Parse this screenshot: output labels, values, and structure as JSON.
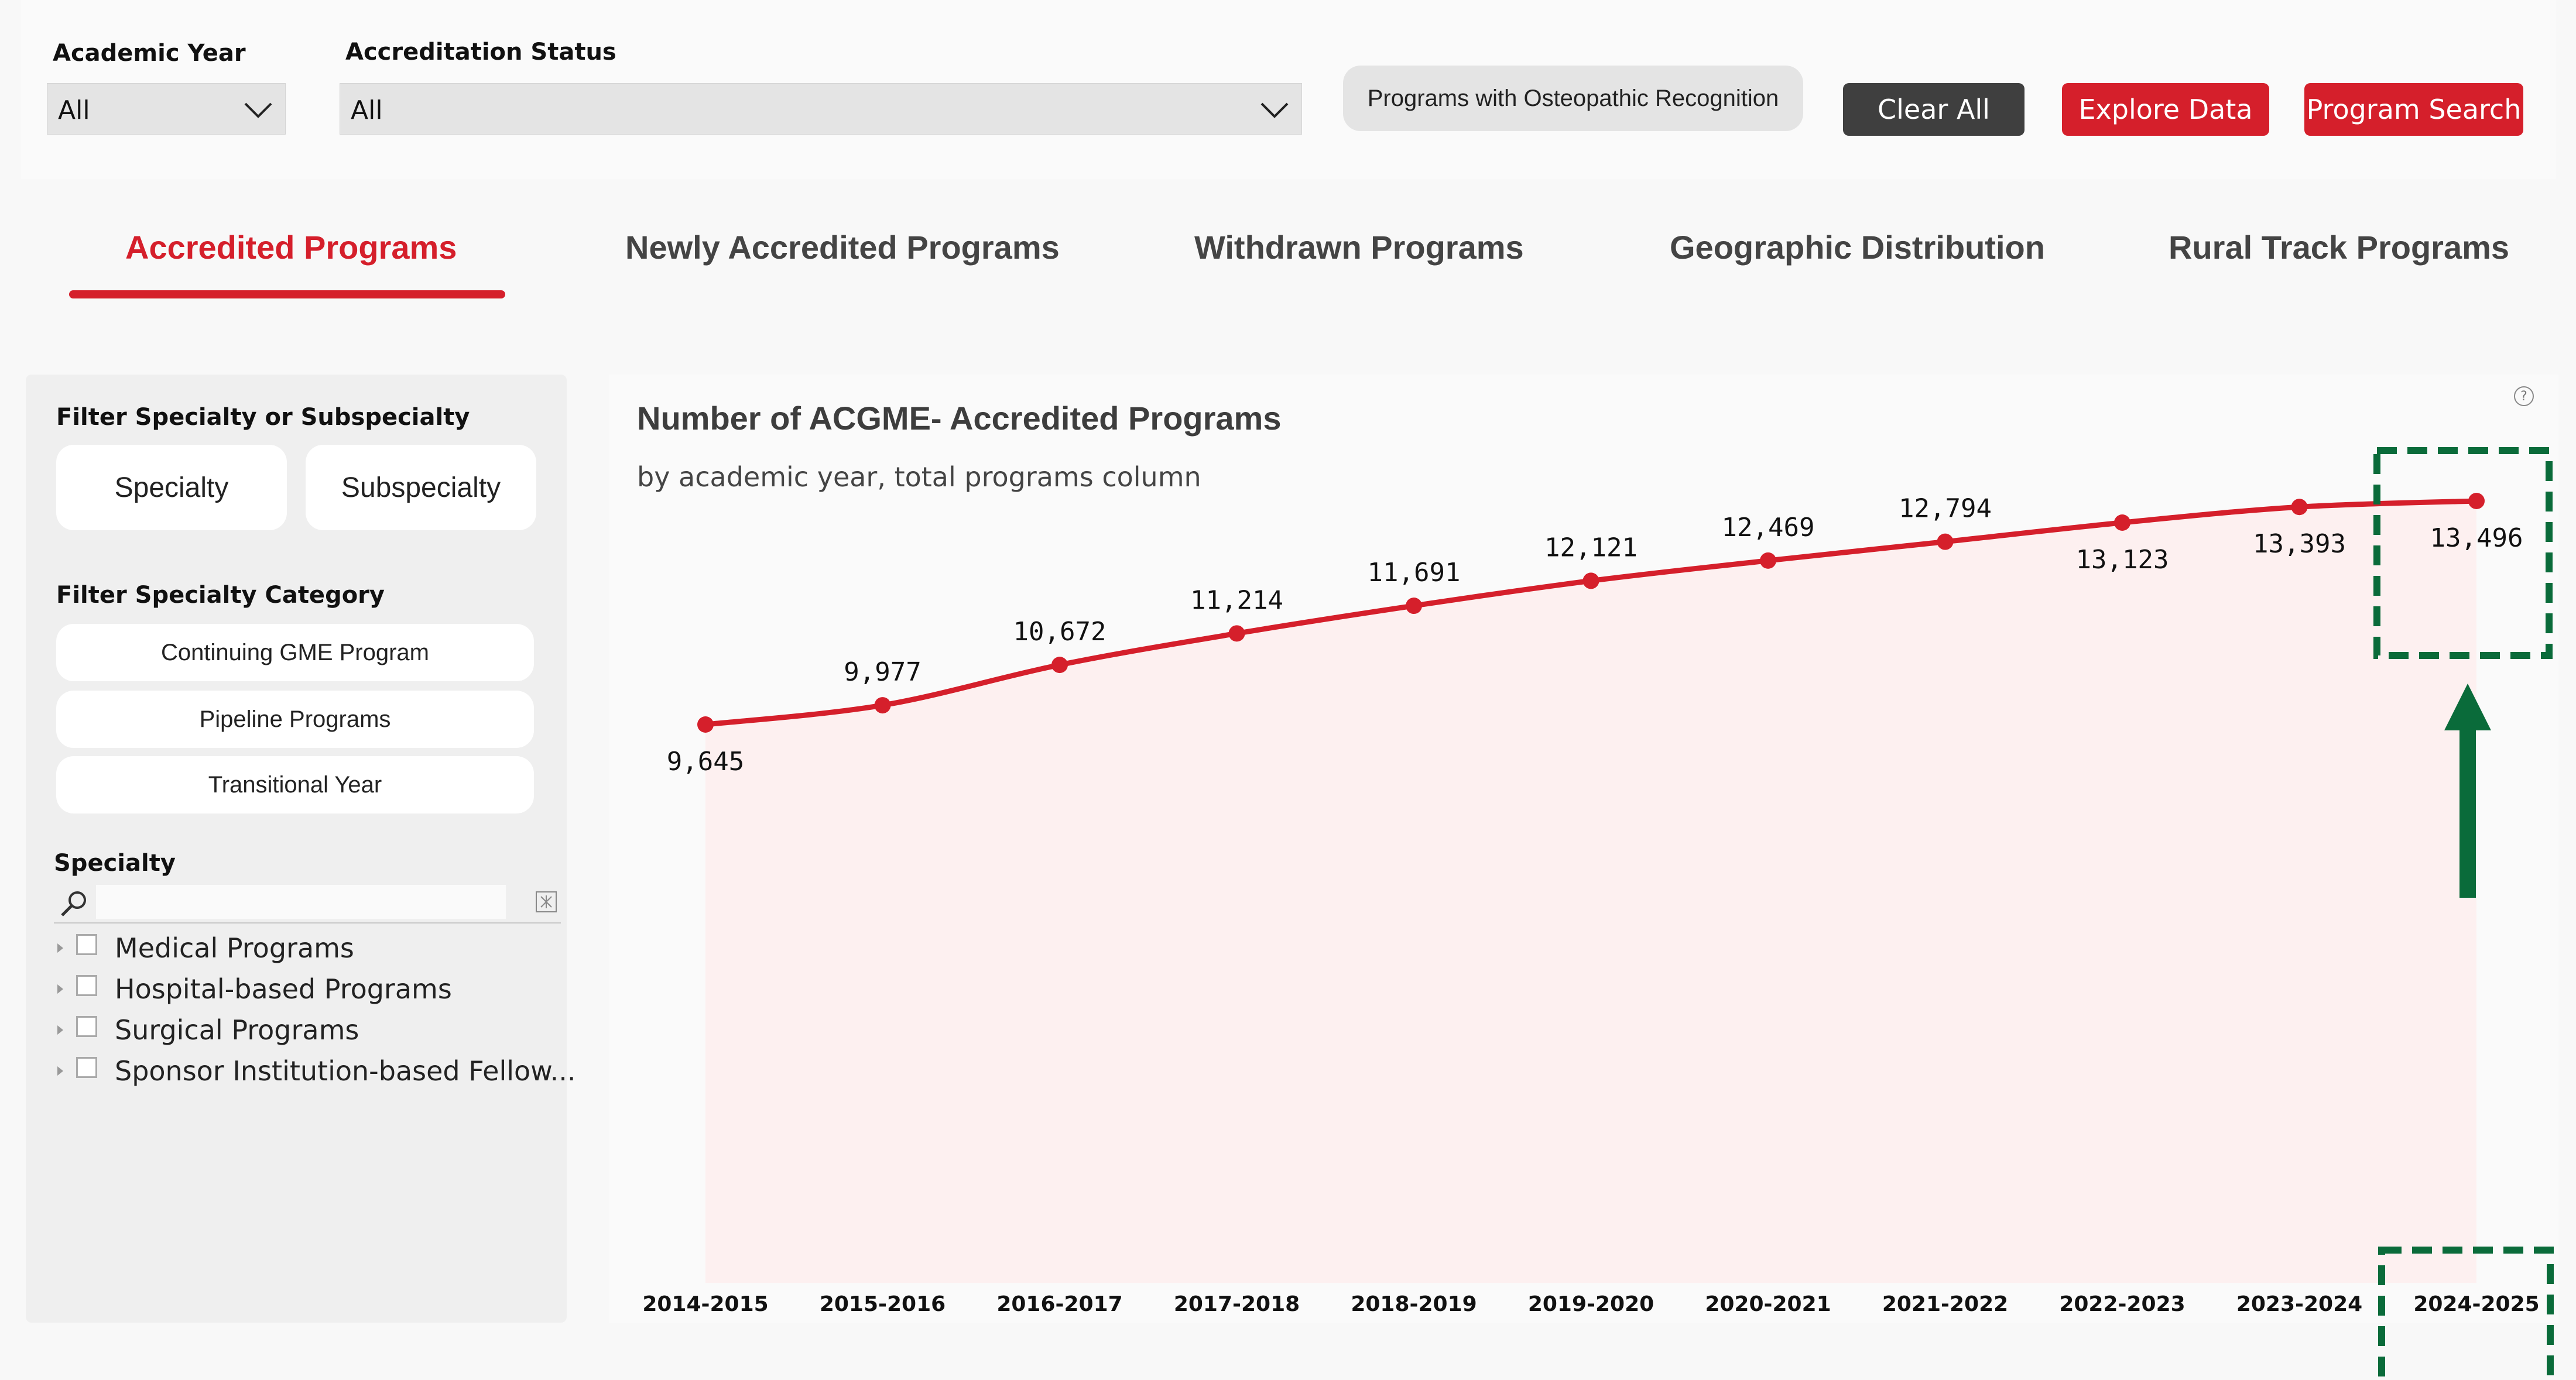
{
  "filters": {
    "academic_year": {
      "label": "Academic Year",
      "value": "All"
    },
    "accreditation_status": {
      "label": "Accreditation Status",
      "value": "All"
    },
    "osteopathic_button": "Programs with Osteopathic Recognition",
    "clear_all": "Clear All",
    "explore_data": "Explore Data",
    "program_search": "Program Search"
  },
  "tabs": [
    {
      "label": "Accredited Programs",
      "active": true
    },
    {
      "label": "Newly Accredited Programs",
      "active": false
    },
    {
      "label": "Withdrawn Programs",
      "active": false
    },
    {
      "label": "Geographic Distribution",
      "active": false
    },
    {
      "label": "Rural Track Programs",
      "active": false
    }
  ],
  "sidebar": {
    "filter_specialty_title": "Filter Specialty or Subspecialty",
    "specialty_button": "Specialty",
    "subspecialty_button": "Subspecialty",
    "category_title": "Filter Specialty Category",
    "categories": [
      "Continuing GME Program",
      "Pipeline Programs",
      "Transitional Year"
    ],
    "specialty_title": "Specialty",
    "search_placeholder": "",
    "tree_items": [
      "Medical Programs",
      "Hospital-based Programs",
      "Surgical Programs",
      "Sponsor Institution-based Fellow..."
    ]
  },
  "chart_data": {
    "type": "area",
    "title": "Number of ACGME- Accredited Programs",
    "subtitle": "by academic year, total programs column",
    "categories": [
      "2014-2015",
      "2015-2016",
      "2016-2017",
      "2017-2018",
      "2018-2019",
      "2019-2020",
      "2020-2021",
      "2021-2022",
      "2022-2023",
      "2023-2024",
      "2024-2025"
    ],
    "values": [
      9645,
      9977,
      10672,
      11214,
      11691,
      12121,
      12469,
      12794,
      13123,
      13393,
      13496
    ],
    "data_labels": [
      "9,645",
      "9,977",
      "10,672",
      "11,214",
      "11,691",
      "12,121",
      "12,469",
      "12,794",
      "13,123",
      "13,393",
      "13,496"
    ],
    "label_position": [
      "below",
      "above",
      "above",
      "above",
      "above",
      "above",
      "above",
      "above",
      "below",
      "below",
      "below"
    ],
    "xlabel": "",
    "ylabel": "",
    "grid": false,
    "legend": "none",
    "colors": {
      "line": "#d51f2b",
      "area": "#fdf0f0"
    }
  },
  "annotations": {
    "highlight_color": "#0a6b3a"
  },
  "colors": {
    "accent": "#d51f2b",
    "dark_button": "#3f3f3f",
    "panel": "#efefef",
    "dropdown": "#e4e4e4"
  },
  "icons": {
    "chevron": "chevron-down-icon",
    "search": "search-icon",
    "clear": "clear-search-icon",
    "help": "help-icon"
  }
}
